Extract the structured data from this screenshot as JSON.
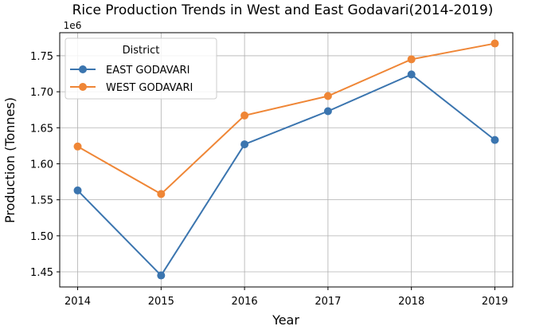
{
  "chart_data": {
    "type": "line",
    "title": "Rice Production Trends in West and East Godavari(2014-2019)",
    "xlabel": "Year",
    "ylabel": "Production (Tonnes)",
    "y_offset_label": "1e6",
    "x": [
      2014,
      2015,
      2016,
      2017,
      2018,
      2019
    ],
    "x_ticks": [
      "2014",
      "2015",
      "2016",
      "2017",
      "2018",
      "2019"
    ],
    "y_ticks": [
      "1.45",
      "1.50",
      "1.55",
      "1.60",
      "1.65",
      "1.70",
      "1.75"
    ],
    "y_tick_values": [
      1.45,
      1.5,
      1.55,
      1.6,
      1.65,
      1.7,
      1.75
    ],
    "ylim": [
      1.429,
      1.782
    ],
    "grid": true,
    "legend": {
      "title": "District",
      "position": "top-left"
    },
    "series": [
      {
        "name": "EAST GODAVARI",
        "color": "#3b75af",
        "values": [
          1.563,
          1.445,
          1.627,
          1.673,
          1.724,
          1.633
        ]
      },
      {
        "name": "WEST GODAVARI",
        "color": "#ef8636",
        "values": [
          1.624,
          1.558,
          1.667,
          1.694,
          1.745,
          1.767
        ]
      }
    ]
  }
}
